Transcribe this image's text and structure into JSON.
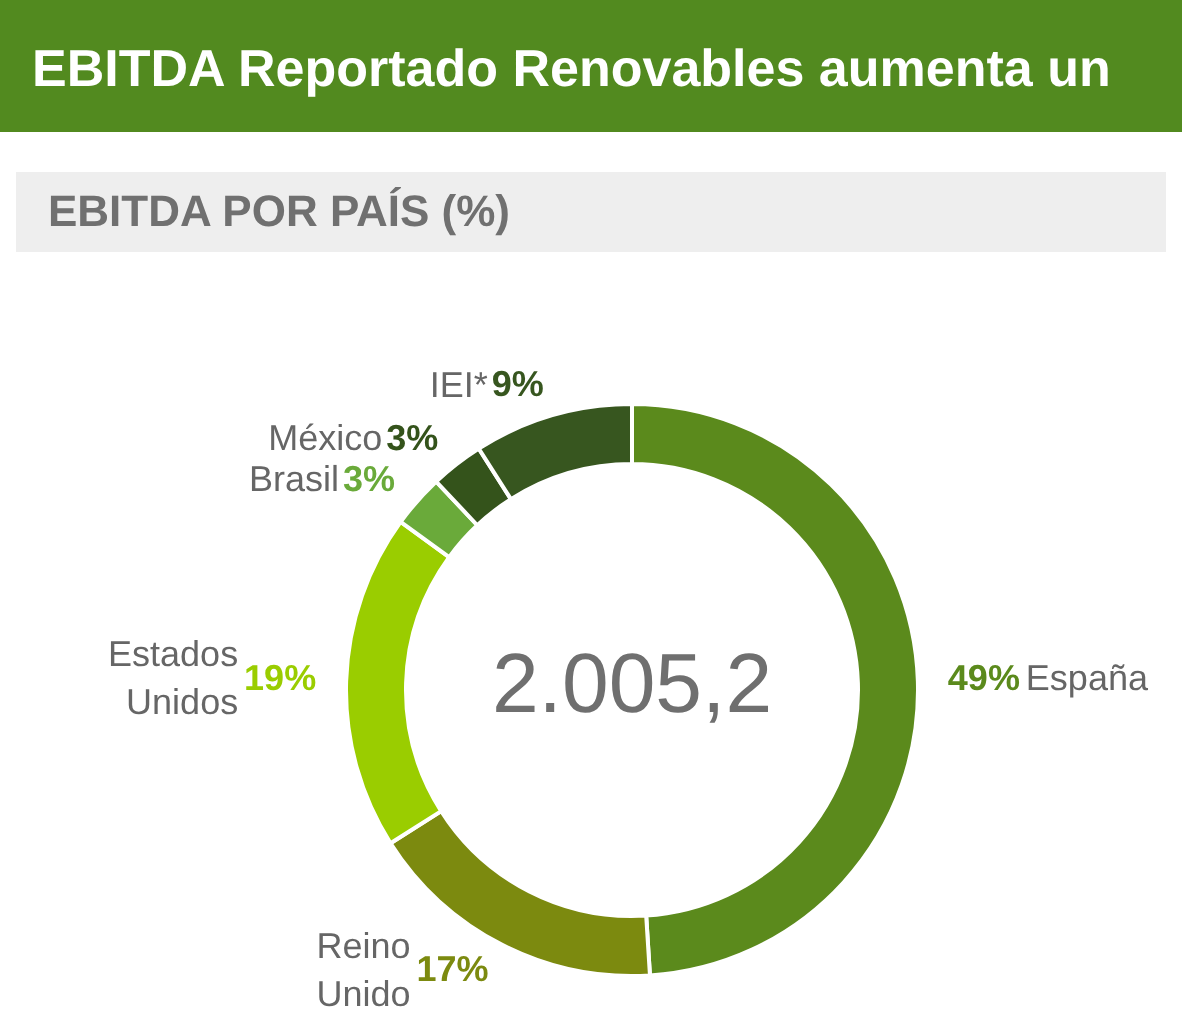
{
  "chart_data": {
    "type": "donut",
    "title": "EBITDA Reportado Renovables aumenta un",
    "subtitle": "EBITDA POR PAÍS (%)",
    "categories": [
      "España",
      "Reino Unido",
      "Estados Unidos",
      "Brasil",
      "México",
      "IEI*"
    ],
    "values": [
      49,
      17,
      19,
      3,
      3,
      9
    ],
    "colors": [
      "#5b8a1c",
      "#7c8a0f",
      "#9acd00",
      "#6aaa3a",
      "#34531b",
      "#37561f"
    ],
    "value_labels": [
      "49%",
      "17%",
      "19%",
      "3%",
      "3%",
      "9%"
    ],
    "annotations": [
      "2.005,2"
    ]
  }
}
